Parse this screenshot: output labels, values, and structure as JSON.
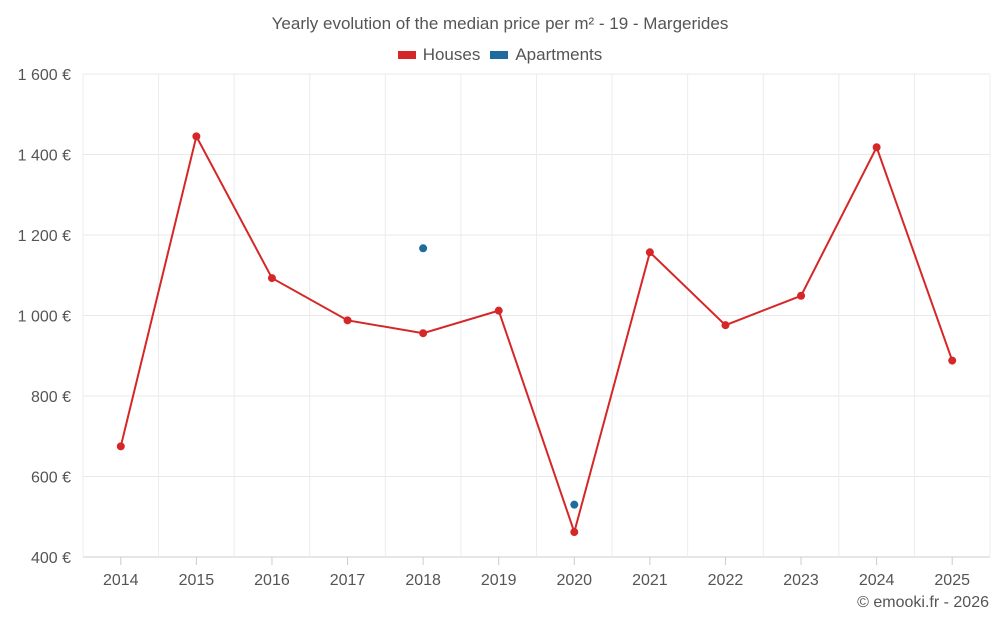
{
  "chart_data": {
    "type": "line",
    "title": "Yearly evolution of the median price per m² - 19 - Margerides",
    "categories": [
      "2014",
      "2015",
      "2016",
      "2017",
      "2018",
      "2019",
      "2020",
      "2021",
      "2022",
      "2023",
      "2024",
      "2025"
    ],
    "series": [
      {
        "name": "Houses",
        "color": "#d62728",
        "values": [
          675,
          1445,
          1093,
          988,
          956,
          1012,
          462,
          1157,
          976,
          1049,
          1418,
          888
        ]
      },
      {
        "name": "Apartments",
        "color": "#1f6b9c",
        "values": [
          null,
          null,
          null,
          null,
          1167,
          null,
          530,
          null,
          null,
          null,
          null,
          null
        ]
      }
    ],
    "ylim": [
      400,
      1600
    ],
    "yticks": [
      400,
      600,
      800,
      1000,
      1200,
      1400,
      1600
    ],
    "ytick_labels": [
      "400 €",
      "600 €",
      "800 €",
      "1 000 €",
      "1 200 €",
      "1 400 €",
      "1 600 €"
    ],
    "xlabel": "",
    "ylabel": "",
    "grid": true,
    "legend_position": "top-center"
  },
  "credit": "© emooki.fr - 2026"
}
